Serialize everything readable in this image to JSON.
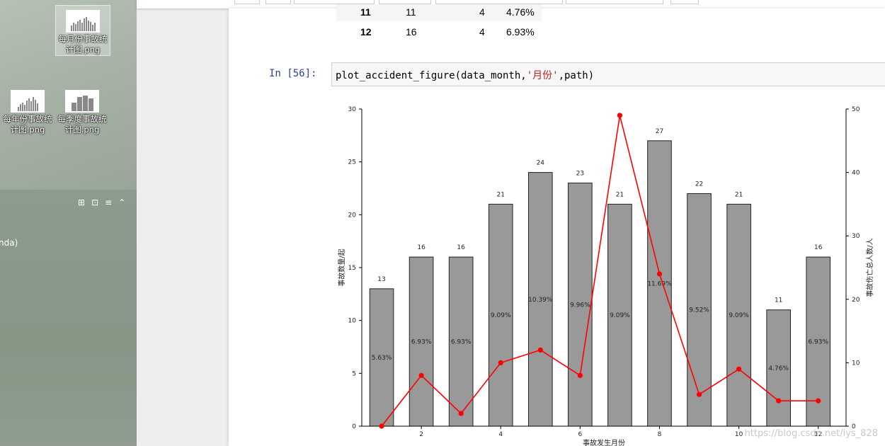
{
  "desktop": {
    "icons": [
      {
        "label": "每月份事故统计图.png",
        "selected": true
      },
      {
        "label": "每年份事故统计图.png",
        "selected": false
      },
      {
        "label": "每季度事故统计图.png",
        "selected": false
      }
    ],
    "toolbar_icons": [
      "grid-icon",
      "lock-icon",
      "menu-icon",
      "chevron-up-icon"
    ],
    "side_text": "nda)"
  },
  "dataframe": {
    "rows": [
      {
        "index": "11",
        "count": "11",
        "deaths": "4",
        "percent": "4.76%"
      },
      {
        "index": "12",
        "count": "16",
        "deaths": "4",
        "percent": "6.93%"
      }
    ]
  },
  "cell": {
    "prompt": "In  [56]:",
    "code_pre": "plot_accident_figure(data_month,",
    "code_str": "'月份'",
    "code_post": ",path)"
  },
  "chart_data": {
    "type": "bar",
    "x": [
      1,
      2,
      3,
      4,
      5,
      6,
      7,
      8,
      9,
      10,
      11,
      12
    ],
    "values": [
      13,
      16,
      16,
      21,
      24,
      23,
      21,
      27,
      22,
      21,
      11,
      16
    ],
    "bar_value_labels": [
      "13",
      "16",
      "16",
      "21",
      "24",
      "23",
      "21",
      "27",
      "22",
      "21",
      "11",
      "16"
    ],
    "percent_labels": [
      "5.63%",
      "6.93%",
      "6.93%",
      "9.09%",
      "10.39%",
      "9.96%",
      "9.09%",
      "11.69%",
      "9.52%",
      "9.09%",
      "4.76%",
      "6.93%"
    ],
    "line_series": {
      "values": [
        0,
        8,
        2,
        10,
        12,
        8,
        49,
        24,
        5,
        9,
        4,
        4
      ],
      "color": "#ff0000"
    },
    "xlabel": "事故发生月份",
    "ylabel": "事故数量/起",
    "y2label": "事故伤亡总人数/人",
    "ylim": [
      0,
      30
    ],
    "y2lim": [
      0,
      50
    ],
    "xticks": [
      2,
      4,
      6,
      8,
      10,
      12
    ],
    "yticks": [
      0,
      5,
      10,
      15,
      20,
      25,
      30
    ],
    "y2ticks": [
      0,
      10,
      20,
      30,
      40,
      50
    ],
    "bar_color": "#999999",
    "grid": false
  },
  "watermark": "https://blog.csdn.net/iys_828"
}
